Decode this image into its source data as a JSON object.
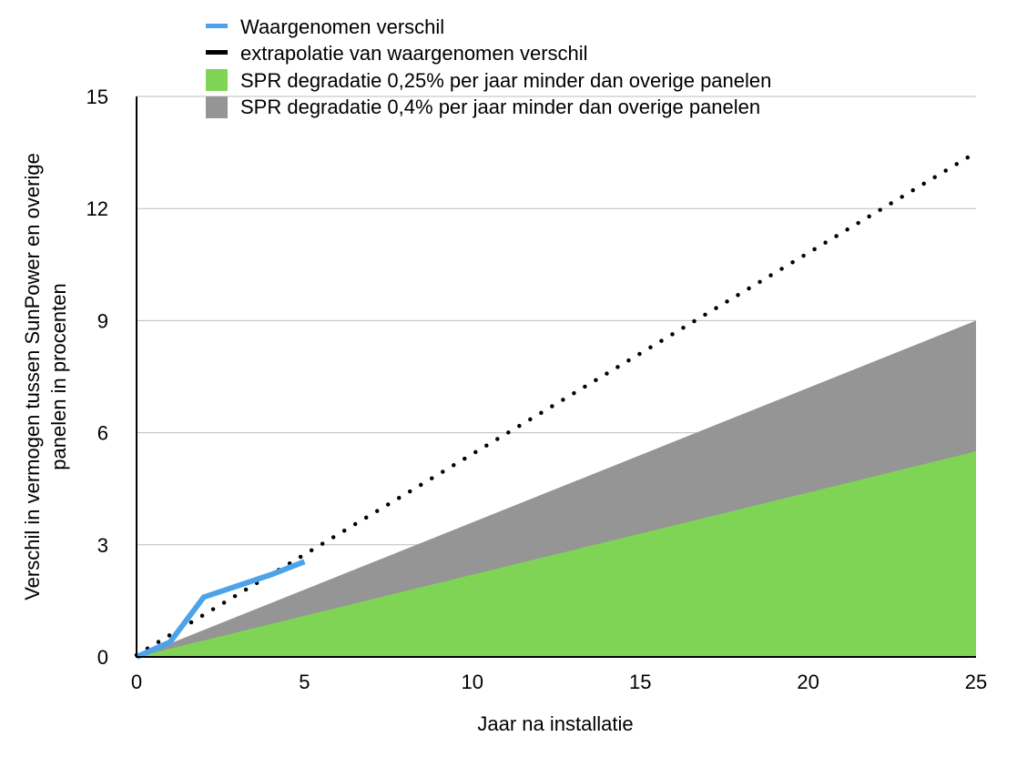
{
  "chart_data": {
    "type": "area",
    "x_axis": {
      "label": "Jaar na installatie",
      "range": [
        0,
        25
      ],
      "ticks": [
        0,
        5,
        10,
        15,
        20,
        25
      ]
    },
    "y_axis": {
      "label_lines": [
        "Verschil in vermogen tussen SunPower en overige",
        "panelen in procenten"
      ],
      "range": [
        0,
        15
      ],
      "ticks": [
        0,
        3,
        6,
        9,
        12,
        15
      ]
    },
    "grid": {
      "horizontal": true,
      "vertical": false
    },
    "legend_placement": "top",
    "series": [
      {
        "name": "Waargenomen verschil",
        "kind": "line",
        "color": "#4da3ea",
        "x": [
          0,
          1,
          2,
          3,
          4,
          5
        ],
        "y": [
          0,
          0.4,
          1.6,
          1.9,
          2.2,
          2.55
        ]
      },
      {
        "name": "extrapolatie van waargenomen verschil",
        "kind": "dotted-line",
        "color": "#000000",
        "x": [
          0,
          25
        ],
        "y": [
          0.05,
          13.5
        ]
      },
      {
        "name": "SPR degradatie 0,25% per jaar minder dan overige panelen",
        "kind": "area",
        "color": "#7fd455",
        "x": [
          0,
          25
        ],
        "y": [
          0,
          5.5
        ]
      },
      {
        "name": "SPR degradatie 0,4% per jaar minder dan overige panelen",
        "kind": "area",
        "color": "#959595",
        "x": [
          0,
          25
        ],
        "y": [
          0,
          9
        ]
      }
    ]
  }
}
